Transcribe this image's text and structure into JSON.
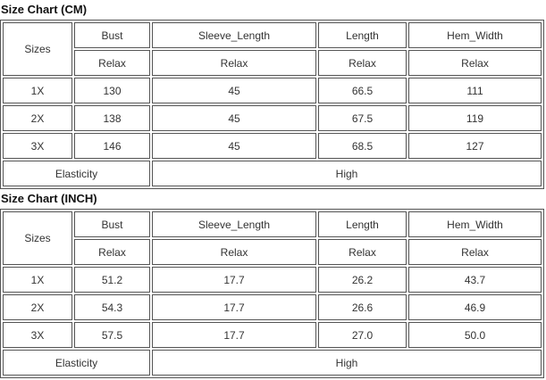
{
  "page": {
    "background": "#ffffff",
    "border_color": "#555555",
    "text_color": "#333333"
  },
  "tables": [
    {
      "title": "Size Chart (CM)",
      "header": {
        "sizes_label": "Sizes",
        "columns": [
          {
            "name": "Bust",
            "sub": "Relax"
          },
          {
            "name": "Sleeve_Length",
            "sub": "Relax"
          },
          {
            "name": "Length",
            "sub": "Relax"
          },
          {
            "name": "Hem_Width",
            "sub": "Relax"
          }
        ]
      },
      "rows": [
        {
          "size": "1X",
          "values": [
            "130",
            "45",
            "66.5",
            "111"
          ]
        },
        {
          "size": "2X",
          "values": [
            "138",
            "45",
            "67.5",
            "119"
          ]
        },
        {
          "size": "3X",
          "values": [
            "146",
            "45",
            "68.5",
            "127"
          ]
        }
      ],
      "footer": {
        "label": "Elasticity",
        "value": "High"
      }
    },
    {
      "title": "Size Chart (INCH)",
      "header": {
        "sizes_label": "Sizes",
        "columns": [
          {
            "name": "Bust",
            "sub": "Relax"
          },
          {
            "name": "Sleeve_Length",
            "sub": "Relax"
          },
          {
            "name": "Length",
            "sub": "Relax"
          },
          {
            "name": "Hem_Width",
            "sub": "Relax"
          }
        ]
      },
      "rows": [
        {
          "size": "1X",
          "values": [
            "51.2",
            "17.7",
            "26.2",
            "43.7"
          ]
        },
        {
          "size": "2X",
          "values": [
            "54.3",
            "17.7",
            "26.6",
            "46.9"
          ]
        },
        {
          "size": "3X",
          "values": [
            "57.5",
            "17.7",
            "27.0",
            "50.0"
          ]
        }
      ],
      "footer": {
        "label": "Elasticity",
        "value": "High"
      }
    }
  ],
  "chart_data": [
    {
      "type": "table",
      "title": "Size Chart (CM)",
      "columns": [
        "Sizes",
        "Bust (Relax)",
        "Sleeve_Length (Relax)",
        "Length (Relax)",
        "Hem_Width (Relax)"
      ],
      "rows": [
        [
          "1X",
          130,
          45,
          66.5,
          111
        ],
        [
          "2X",
          138,
          45,
          67.5,
          119
        ],
        [
          "3X",
          146,
          45,
          68.5,
          127
        ]
      ],
      "elasticity": "High"
    },
    {
      "type": "table",
      "title": "Size Chart (INCH)",
      "columns": [
        "Sizes",
        "Bust (Relax)",
        "Sleeve_Length (Relax)",
        "Length (Relax)",
        "Hem_Width (Relax)"
      ],
      "rows": [
        [
          "1X",
          51.2,
          17.7,
          26.2,
          43.7
        ],
        [
          "2X",
          54.3,
          17.7,
          26.6,
          46.9
        ],
        [
          "3X",
          57.5,
          17.7,
          27.0,
          50.0
        ]
      ],
      "elasticity": "High"
    }
  ]
}
